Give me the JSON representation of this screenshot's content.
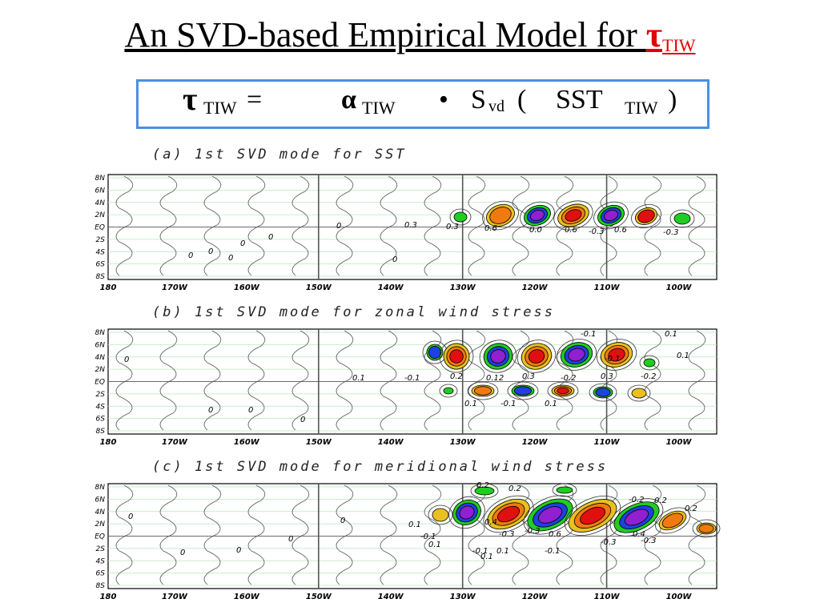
{
  "slide": {
    "title_text": "An SVD-based Empirical Model for ",
    "title_symbol": "τ",
    "title_sub": "TIW"
  },
  "equation": {
    "lhs_symbol": "τ",
    "lhs_sub": "TIW",
    "equals": "=",
    "alpha": "α",
    "alpha_sub": "TIW",
    "dot": "•",
    "s": "S",
    "s_sub": "vd",
    "open": "(",
    "sst": "SST",
    "sst_sub": "TIW",
    "close": ")"
  },
  "panels": [
    {
      "title": "(a) 1st SVD mode for SST",
      "contour_labels": [
        "0",
        "0",
        "0",
        "0",
        "0",
        "0",
        "0",
        "0.3",
        "0.3",
        "0.6",
        "0.0",
        "0.6",
        "-0.3",
        "0.6",
        "-0.3"
      ]
    },
    {
      "title": "(b) 1st SVD mode for zonal wind stress",
      "contour_labels": [
        "0",
        "0",
        "0",
        "0",
        "0.1",
        "-0.1",
        "0.2",
        "0.12",
        "0.3",
        "-0.2",
        "0.3",
        "-0.2",
        "-0.1",
        "0.1",
        "0.1",
        "-0.1",
        "0.1",
        "0.1",
        "-0.1"
      ]
    },
    {
      "title": "(c) 1st SVD mode for meridional wind stress",
      "contour_labels": [
        "0",
        "0",
        "0",
        "0",
        "0",
        "0.1",
        "-0.1",
        "0.1",
        "0.2",
        "0.4",
        "-0.3",
        "0.2",
        "-0.3",
        "0.6",
        "-0.2",
        "0.2",
        "0.2",
        "-0.3",
        "-0.3",
        "0.4",
        "-0.1",
        "0.1",
        "-0.1",
        "0.1"
      ]
    }
  ],
  "axes": {
    "y_ticks": [
      "8N",
      "6N",
      "4N",
      "2N",
      "EQ",
      "2S",
      "4S",
      "6S",
      "8S"
    ],
    "x_ticks": [
      "180",
      "170W",
      "160W",
      "150W",
      "140W",
      "130W",
      "120W",
      "110W",
      "100W"
    ]
  },
  "colors": {
    "title_accent": "#e00000",
    "box_border": "#4a90e2",
    "green": "#22cc22",
    "yellow": "#e8c020",
    "orange": "#f07a10",
    "red": "#e01010",
    "blue": "#2040e0",
    "purple": "#9020d0"
  }
}
